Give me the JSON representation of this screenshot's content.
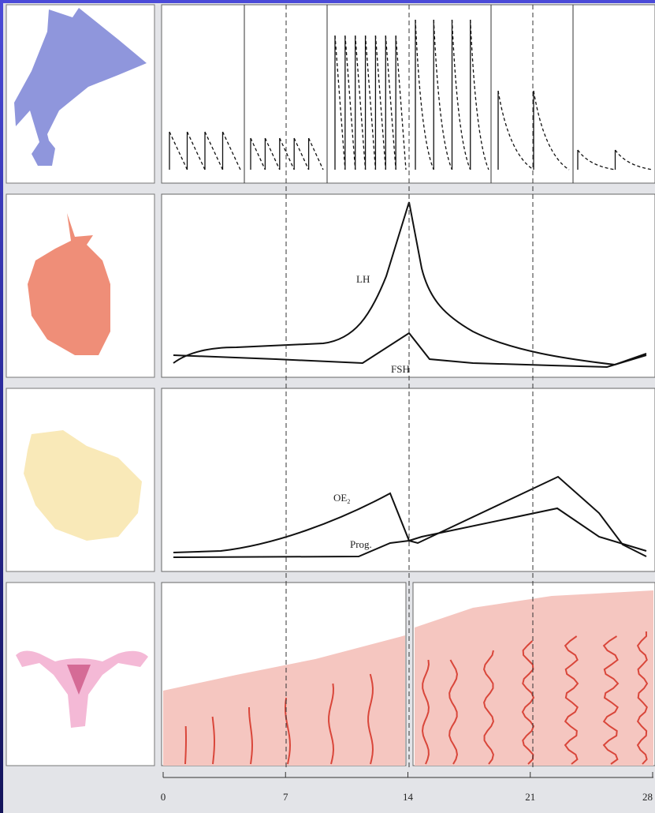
{
  "gonadotropins": {
    "lh": "LH",
    "fsh": "FSH"
  },
  "ovarian_hormones": {
    "oestradiol": "OE",
    "oestradiol_subscript": "2",
    "progesterone": "Prog."
  },
  "day_axis": {
    "ticks": [
      0,
      7,
      14,
      21,
      28
    ]
  }
}
